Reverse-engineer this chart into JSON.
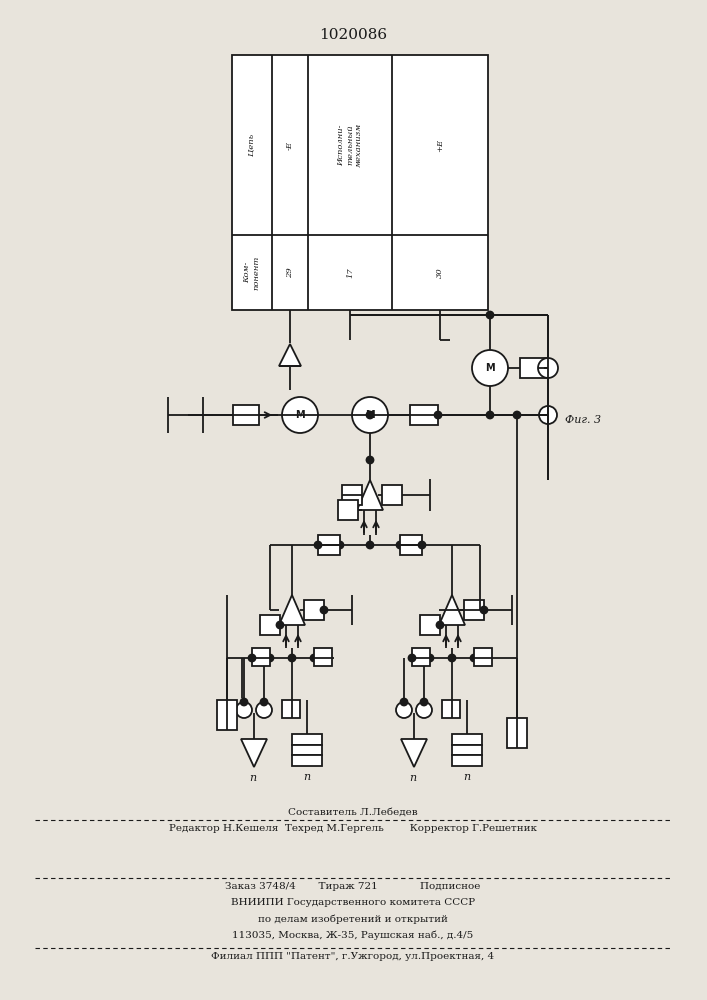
{
  "patent_number": "1020086",
  "fig_label": "Фиг. 3",
  "background_color": "#e8e4dc",
  "line_color": "#1a1a1a",
  "footer_lines": [
    "Составитель Л.Лебедев",
    "Редактор Н.Кешеля  Техред М.Гергель        Корректор Г.Решетник",
    "Заказ 3748/4       Тираж 721             Подписное",
    "ВНИИПИ Государственного комитета СССР",
    "по делам изобретений и открытий",
    "113035, Москва, Ж-35, Раушская наб., д.4/5",
    "Филиал ППП \"Патент\", г.Ужгород, ул.Проектная, 4"
  ]
}
